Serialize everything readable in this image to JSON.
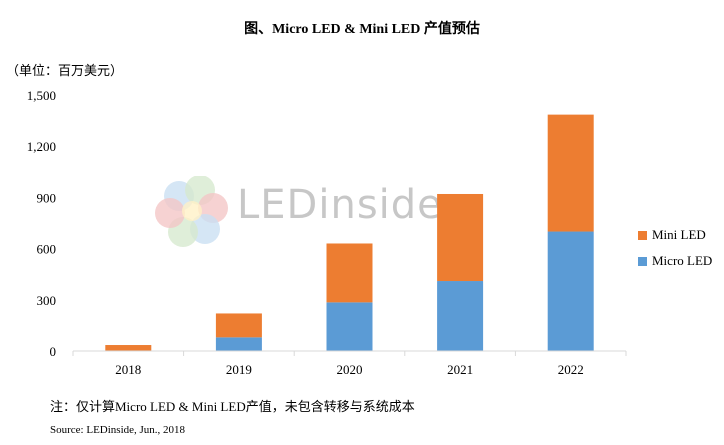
{
  "header": {
    "title": "图、Micro LED & Mini LED 产值预估",
    "unit": "（单位：百万美元）"
  },
  "watermark": {
    "text": "LEDinside"
  },
  "footer": {
    "note": "注：仅计算Micro LED & Mini LED产值，未包含转移与系统成本",
    "source": "Source: LEDinside, Jun., 2018"
  },
  "colors": {
    "micro": "#5b9bd5",
    "mini": "#ed7d31",
    "axis": "#d9d9d9"
  },
  "chart_data": {
    "type": "bar",
    "stacked": true,
    "categories": [
      "2018",
      "2019",
      "2020",
      "2021",
      "2022"
    ],
    "series": [
      {
        "name": "Micro LED",
        "values": [
          0,
          80,
          285,
          410,
          700
        ]
      },
      {
        "name": "Mini LED",
        "values": [
          35,
          140,
          345,
          510,
          685
        ]
      }
    ],
    "ylim": [
      0,
      1500
    ],
    "yticks": [
      "0",
      "300",
      "600",
      "900",
      "1,200",
      "1,500"
    ],
    "legend": "right",
    "grid": false
  }
}
